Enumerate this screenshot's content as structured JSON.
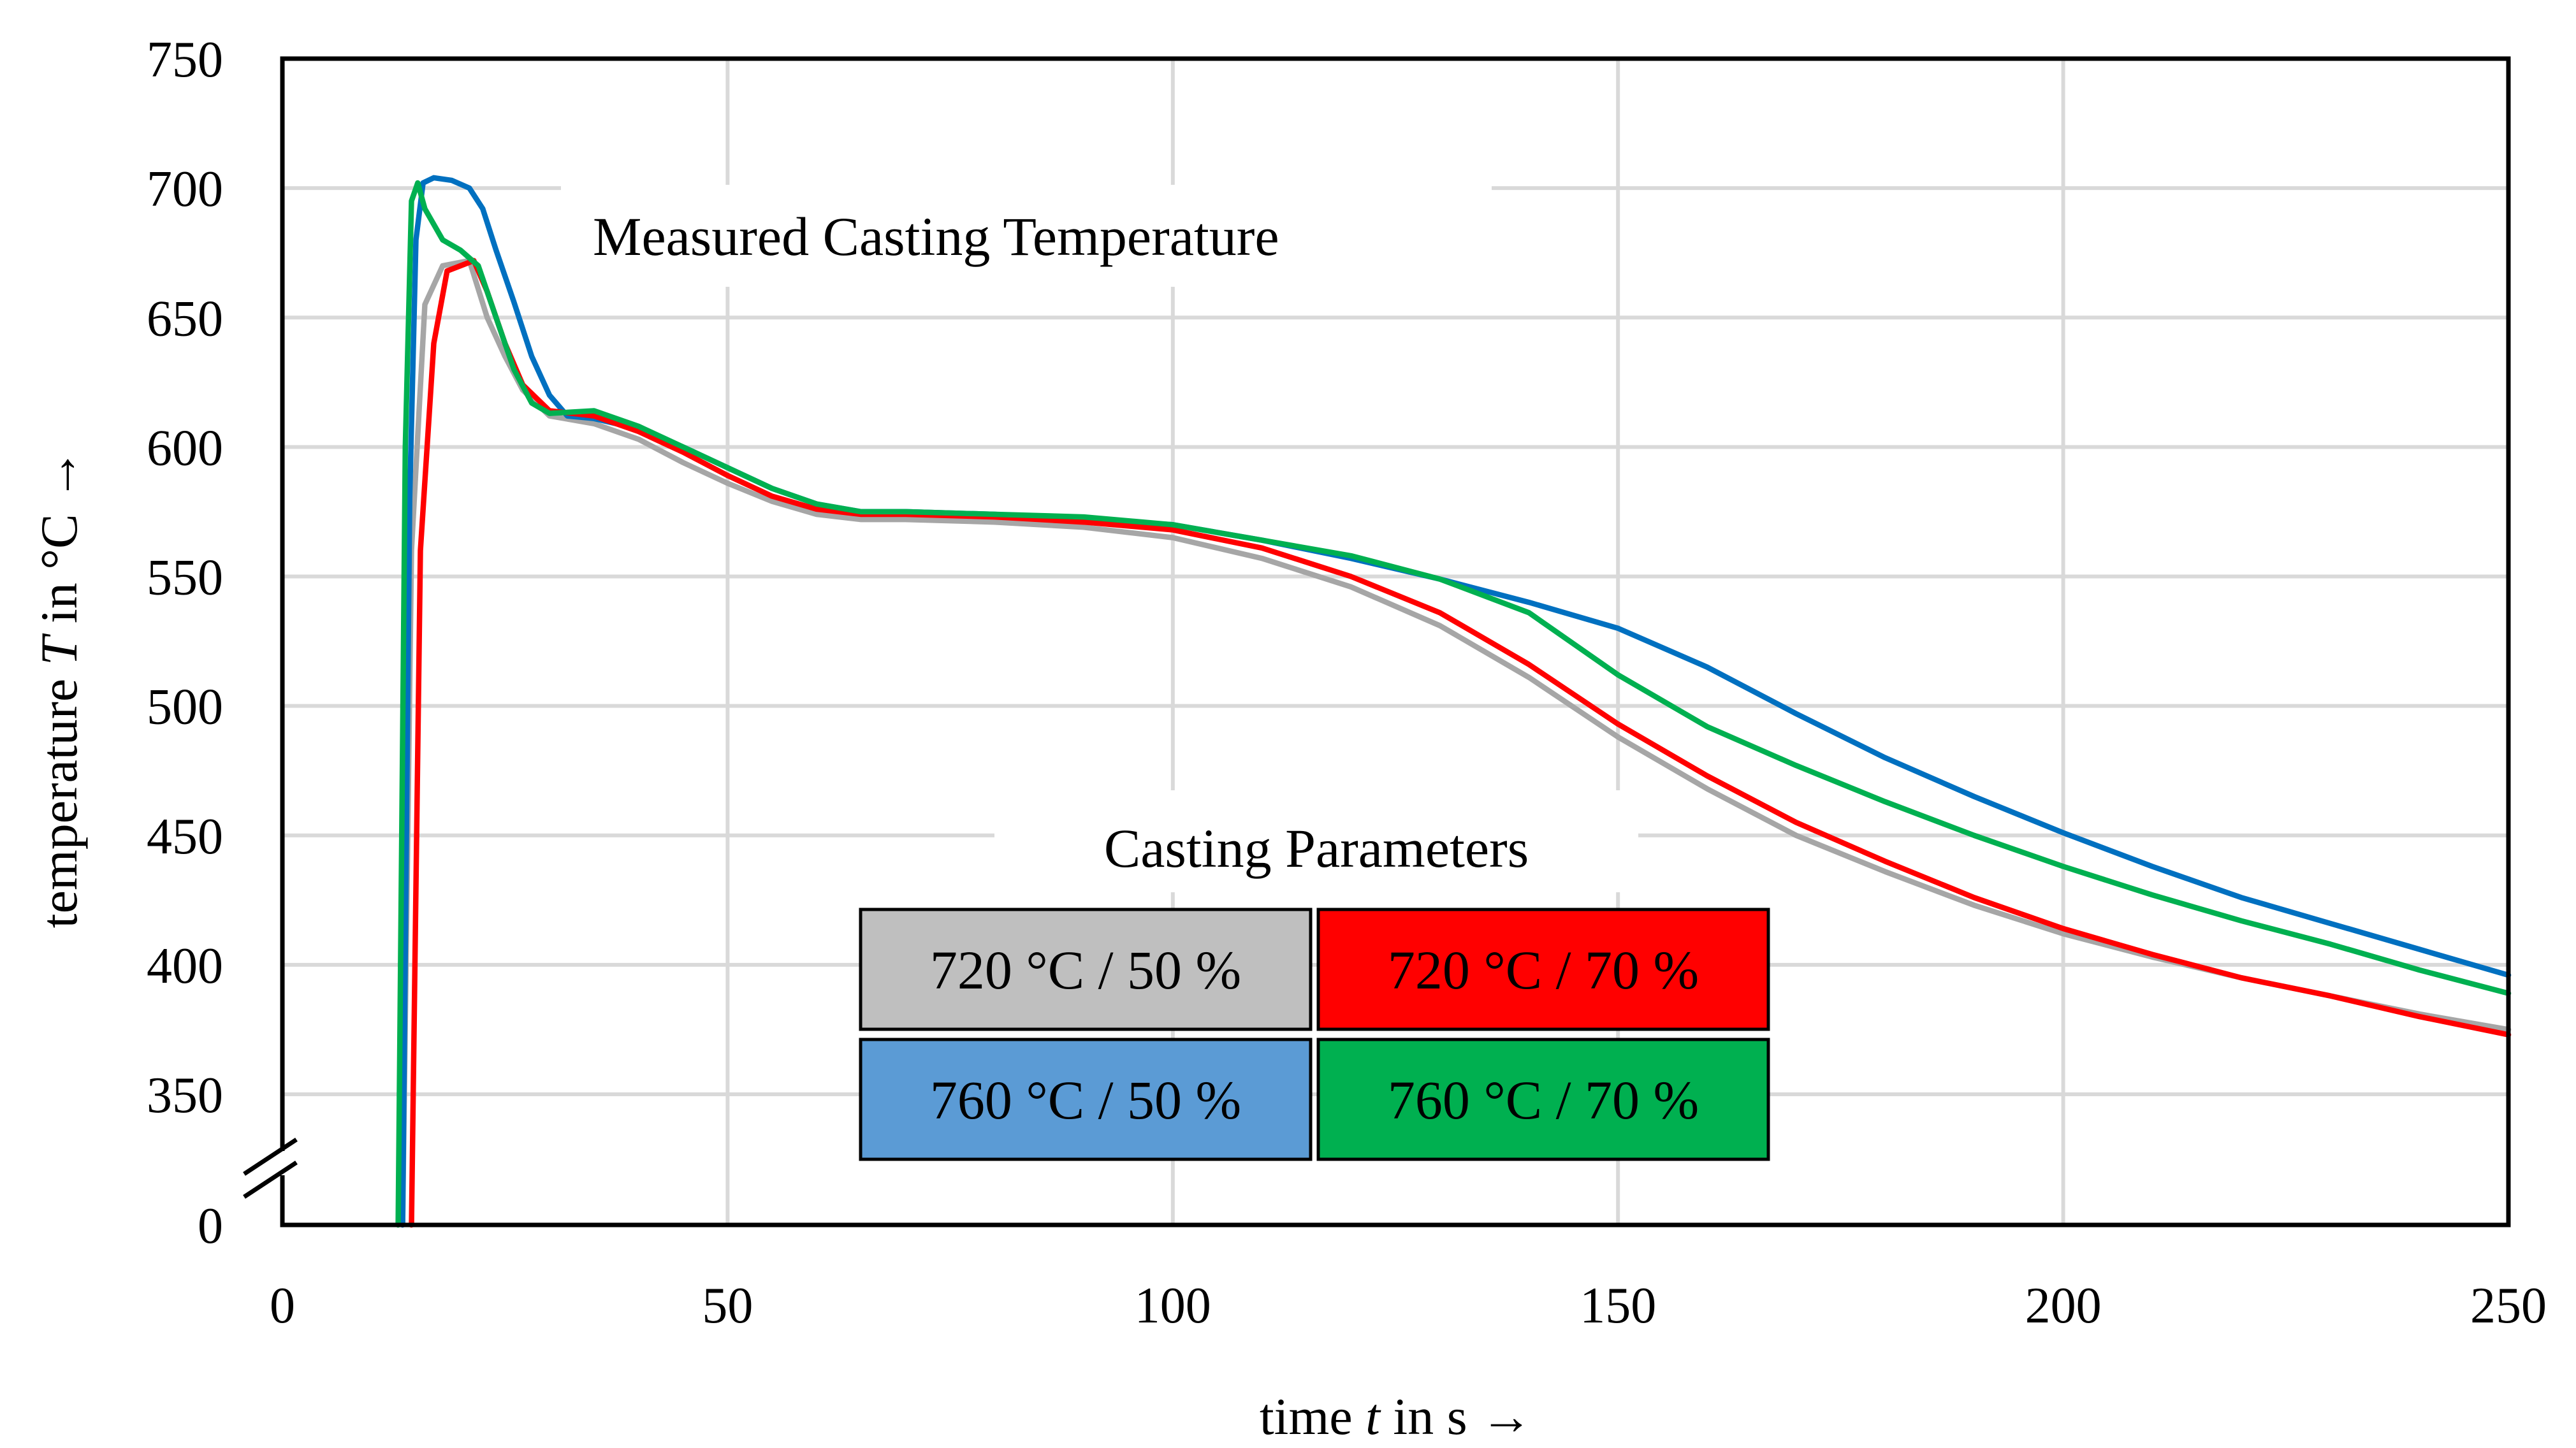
{
  "chart_data": {
    "type": "line",
    "title": "Measured Casting Temperature",
    "xlabel_parts": [
      "time ",
      "t",
      " in s →"
    ],
    "ylabel_parts": [
      "temperature ",
      "T",
      " in °C →"
    ],
    "xlim": [
      0,
      250
    ],
    "ylim": [
      300,
      750
    ],
    "axis_break": "between 0 and 350 on the y-axis",
    "x_ticks": [
      0,
      50,
      100,
      150,
      200,
      250
    ],
    "y_ticks": [
      350,
      400,
      450,
      500,
      550,
      600,
      650,
      700,
      750
    ],
    "y_zero_label": "0",
    "grid": true,
    "legend_title": "Casting Parameters",
    "series": [
      {
        "name": "720 °C / 50 %",
        "color": "#a6a6a6",
        "legend_fill": "#bfbfbf",
        "legend_text_color": "#000000",
        "points": [
          [
            13.5,
            0
          ],
          [
            14.5,
            560
          ],
          [
            16,
            655
          ],
          [
            18,
            670
          ],
          [
            21,
            672
          ],
          [
            23,
            650
          ],
          [
            25,
            635
          ],
          [
            27,
            622
          ],
          [
            30,
            612
          ],
          [
            35,
            609
          ],
          [
            40,
            603
          ],
          [
            45,
            594
          ],
          [
            50,
            586
          ],
          [
            55,
            579
          ],
          [
            60,
            574
          ],
          [
            65,
            572
          ],
          [
            70,
            572
          ],
          [
            80,
            571
          ],
          [
            90,
            569
          ],
          [
            100,
            565
          ],
          [
            110,
            557
          ],
          [
            120,
            546
          ],
          [
            130,
            531
          ],
          [
            140,
            511
          ],
          [
            150,
            488
          ],
          [
            160,
            468
          ],
          [
            170,
            450
          ],
          [
            180,
            436
          ],
          [
            190,
            423
          ],
          [
            200,
            412
          ],
          [
            210,
            403
          ],
          [
            220,
            395
          ],
          [
            230,
            388
          ],
          [
            240,
            381
          ],
          [
            250,
            375
          ]
        ]
      },
      {
        "name": "720 °C / 70 %",
        "color": "#ff0000",
        "legend_fill": "#ff0000",
        "legend_text_color": "#000000",
        "points": [
          [
            14.5,
            0
          ],
          [
            15.5,
            560
          ],
          [
            17,
            640
          ],
          [
            18.5,
            668
          ],
          [
            20,
            670
          ],
          [
            21.5,
            672
          ],
          [
            23,
            660
          ],
          [
            25,
            640
          ],
          [
            27,
            624
          ],
          [
            30,
            614
          ],
          [
            35,
            612
          ],
          [
            40,
            606
          ],
          [
            45,
            598
          ],
          [
            50,
            589
          ],
          [
            55,
            581
          ],
          [
            60,
            576
          ],
          [
            65,
            574
          ],
          [
            70,
            574
          ],
          [
            80,
            573
          ],
          [
            90,
            571
          ],
          [
            100,
            568
          ],
          [
            110,
            561
          ],
          [
            120,
            550
          ],
          [
            130,
            536
          ],
          [
            140,
            516
          ],
          [
            150,
            493
          ],
          [
            160,
            473
          ],
          [
            170,
            455
          ],
          [
            180,
            440
          ],
          [
            190,
            426
          ],
          [
            200,
            414
          ],
          [
            210,
            404
          ],
          [
            220,
            395
          ],
          [
            230,
            388
          ],
          [
            240,
            380
          ],
          [
            250,
            373
          ]
        ]
      },
      {
        "name": "760 °C / 50 %",
        "color": "#0070c0",
        "legend_fill": "#5b9bd5",
        "legend_text_color": "#000000",
        "points": [
          [
            13.5,
            0
          ],
          [
            14.3,
            580
          ],
          [
            15,
            680
          ],
          [
            15.8,
            702
          ],
          [
            17,
            704
          ],
          [
            19,
            703
          ],
          [
            21,
            700
          ],
          [
            22.5,
            692
          ],
          [
            24,
            676
          ],
          [
            26,
            656
          ],
          [
            28,
            635
          ],
          [
            30,
            620
          ],
          [
            32,
            612
          ],
          [
            35,
            611
          ],
          [
            40,
            607
          ],
          [
            45,
            600
          ],
          [
            50,
            592
          ],
          [
            55,
            584
          ],
          [
            60,
            578
          ],
          [
            65,
            575
          ],
          [
            70,
            575
          ],
          [
            80,
            574
          ],
          [
            90,
            572
          ],
          [
            100,
            570
          ],
          [
            110,
            564
          ],
          [
            120,
            557
          ],
          [
            130,
            549
          ],
          [
            140,
            540
          ],
          [
            150,
            530
          ],
          [
            160,
            515
          ],
          [
            170,
            497
          ],
          [
            180,
            480
          ],
          [
            190,
            465
          ],
          [
            200,
            451
          ],
          [
            210,
            438
          ],
          [
            220,
            426
          ],
          [
            230,
            416
          ],
          [
            240,
            406
          ],
          [
            250,
            396
          ]
        ]
      },
      {
        "name": "760 °C / 70 %",
        "color": "#00b050",
        "legend_fill": "#00b050",
        "legend_text_color": "#000000",
        "points": [
          [
            13,
            0
          ],
          [
            13.8,
            600
          ],
          [
            14.5,
            695
          ],
          [
            15.2,
            702
          ],
          [
            16,
            692
          ],
          [
            18,
            680
          ],
          [
            20,
            676
          ],
          [
            22,
            670
          ],
          [
            24,
            650
          ],
          [
            26,
            630
          ],
          [
            28,
            617
          ],
          [
            30,
            613
          ],
          [
            35,
            614
          ],
          [
            40,
            608
          ],
          [
            45,
            600
          ],
          [
            50,
            592
          ],
          [
            55,
            584
          ],
          [
            60,
            578
          ],
          [
            65,
            575
          ],
          [
            70,
            575
          ],
          [
            80,
            574
          ],
          [
            90,
            573
          ],
          [
            100,
            570
          ],
          [
            110,
            564
          ],
          [
            120,
            558
          ],
          [
            130,
            549
          ],
          [
            140,
            536
          ],
          [
            150,
            512
          ],
          [
            160,
            492
          ],
          [
            170,
            477
          ],
          [
            180,
            463
          ],
          [
            190,
            450
          ],
          [
            200,
            438
          ],
          [
            210,
            427
          ],
          [
            220,
            417
          ],
          [
            230,
            408
          ],
          [
            240,
            398
          ],
          [
            250,
            389
          ]
        ]
      }
    ]
  }
}
